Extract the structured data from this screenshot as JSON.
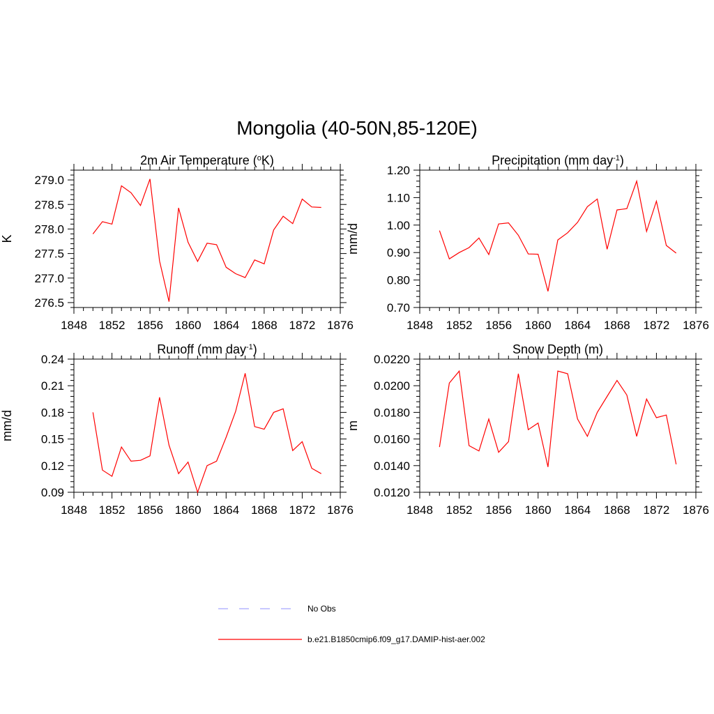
{
  "title": "Mongolia (40-50N,85-120E)",
  "legend": [
    {
      "label": "No Obs",
      "color": "#a6a6ff",
      "style": "dashed"
    },
    {
      "label": "b.e21.B1850cmip6.f09_g17.DAMIP-hist-aer.002",
      "color": "#ff0000",
      "style": "solid"
    }
  ],
  "chart_data": [
    {
      "type": "line",
      "title_main": "2m Air Temperature (",
      "title_sup_pre": "o",
      "title_after_pre": "K)",
      "title_sup_post": "",
      "title_end": "",
      "ylabel": "K",
      "xlim": [
        1848,
        1876
      ],
      "ylim": [
        276.4,
        279.2
      ],
      "xticks": [
        1848,
        1852,
        1856,
        1860,
        1864,
        1868,
        1872,
        1876
      ],
      "yticks": [
        276.5,
        277.0,
        277.5,
        278.0,
        278.5,
        279.0
      ],
      "ytick_labels": [
        "276.5",
        "277.0",
        "277.5",
        "278.0",
        "278.5",
        "279.0"
      ],
      "series": [
        {
          "color": "#ff0000",
          "x": [
            1850,
            1851,
            1852,
            1853,
            1854,
            1855,
            1856,
            1857,
            1858,
            1859,
            1860,
            1861,
            1862,
            1863,
            1864,
            1865,
            1866,
            1867,
            1868,
            1869,
            1870,
            1871,
            1872,
            1873,
            1874
          ],
          "y": [
            277.9,
            278.15,
            278.1,
            278.88,
            278.74,
            278.48,
            279.02,
            277.35,
            276.52,
            278.43,
            277.73,
            277.34,
            277.71,
            277.68,
            277.22,
            277.09,
            277.01,
            277.37,
            277.29,
            277.98,
            278.26,
            278.11,
            278.61,
            278.45,
            278.44
          ]
        }
      ]
    },
    {
      "type": "line",
      "title_main": "Precipitation (mm day",
      "title_sup_pre": "",
      "title_after_pre": "",
      "title_sup_post": "-1",
      "title_end": ")",
      "ylabel": "mm/d",
      "xlim": [
        1848,
        1876
      ],
      "ylim": [
        0.7,
        1.2
      ],
      "xticks": [
        1848,
        1852,
        1856,
        1860,
        1864,
        1868,
        1872,
        1876
      ],
      "yticks": [
        0.7,
        0.8,
        0.9,
        1.0,
        1.1,
        1.2
      ],
      "ytick_labels": [
        "0.70",
        "0.80",
        "0.90",
        "1.00",
        "1.10",
        "1.20"
      ],
      "series": [
        {
          "color": "#ff0000",
          "x": [
            1850,
            1851,
            1852,
            1853,
            1854,
            1855,
            1856,
            1857,
            1858,
            1859,
            1860,
            1861,
            1862,
            1863,
            1864,
            1865,
            1866,
            1867,
            1868,
            1869,
            1870,
            1871,
            1872,
            1873,
            1874
          ],
          "y": [
            0.98,
            0.877,
            0.9,
            0.918,
            0.953,
            0.893,
            1.004,
            1.008,
            0.963,
            0.895,
            0.894,
            0.759,
            0.946,
            0.972,
            1.01,
            1.067,
            1.095,
            0.912,
            1.055,
            1.06,
            1.16,
            0.977,
            1.087,
            0.926,
            0.898
          ]
        }
      ]
    },
    {
      "type": "line",
      "title_main": "Runoff (mm day",
      "title_sup_pre": "",
      "title_after_pre": "",
      "title_sup_post": "-1",
      "title_end": ")",
      "ylabel": "mm/d",
      "xlim": [
        1848,
        1876
      ],
      "ylim": [
        0.09,
        0.24
      ],
      "xticks": [
        1848,
        1852,
        1856,
        1860,
        1864,
        1868,
        1872,
        1876
      ],
      "yticks": [
        0.09,
        0.12,
        0.15,
        0.18,
        0.21,
        0.24
      ],
      "ytick_labels": [
        "0.09",
        "0.12",
        "0.15",
        "0.18",
        "0.21",
        "0.24"
      ],
      "series": [
        {
          "color": "#ff0000",
          "x": [
            1850,
            1851,
            1852,
            1853,
            1854,
            1855,
            1856,
            1857,
            1858,
            1859,
            1860,
            1861,
            1862,
            1863,
            1864,
            1865,
            1866,
            1867,
            1868,
            1869,
            1870,
            1871,
            1872,
            1873,
            1874
          ],
          "y": [
            0.18,
            0.115,
            0.108,
            0.141,
            0.125,
            0.126,
            0.131,
            0.197,
            0.143,
            0.111,
            0.124,
            0.09,
            0.12,
            0.125,
            0.152,
            0.181,
            0.224,
            0.164,
            0.161,
            0.18,
            0.184,
            0.137,
            0.147,
            0.117,
            0.111
          ]
        }
      ]
    },
    {
      "type": "line",
      "title_main": "Snow Depth (m)",
      "title_sup_pre": "",
      "title_after_pre": "",
      "title_sup_post": "",
      "title_end": "",
      "ylabel": "m",
      "xlim": [
        1848,
        1876
      ],
      "ylim": [
        0.012,
        0.022
      ],
      "xticks": [
        1848,
        1852,
        1856,
        1860,
        1864,
        1868,
        1872,
        1876
      ],
      "yticks": [
        0.012,
        0.014,
        0.016,
        0.018,
        0.02,
        0.022
      ],
      "ytick_labels": [
        "0.0120",
        "0.0140",
        "0.0160",
        "0.0180",
        "0.0200",
        "0.0220"
      ],
      "series": [
        {
          "color": "#ff0000",
          "x": [
            1850,
            1851,
            1852,
            1853,
            1854,
            1855,
            1856,
            1857,
            1858,
            1859,
            1860,
            1861,
            1862,
            1863,
            1864,
            1865,
            1866,
            1867,
            1868,
            1869,
            1870,
            1871,
            1872,
            1873,
            1874
          ],
          "y": [
            0.0154,
            0.0202,
            0.0211,
            0.0155,
            0.0151,
            0.0175,
            0.015,
            0.0158,
            0.0209,
            0.0167,
            0.0172,
            0.0139,
            0.0211,
            0.0209,
            0.0175,
            0.0162,
            0.018,
            0.0192,
            0.0204,
            0.0193,
            0.0162,
            0.019,
            0.0176,
            0.0178,
            0.0141
          ]
        }
      ]
    }
  ]
}
